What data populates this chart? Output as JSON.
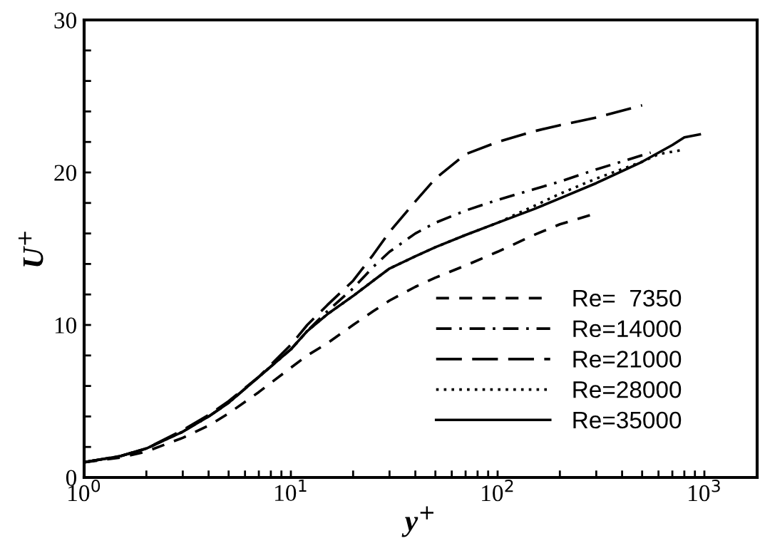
{
  "chart_data": {
    "type": "line",
    "xlabel": "y$^{+}$",
    "ylabel": "U$^{+}$",
    "log": "x",
    "xlim": [
      1,
      1800
    ],
    "ylim": [
      0,
      30
    ],
    "xticks": [
      {
        "value": 1,
        "label": "10$^{0}$"
      },
      {
        "value": 2,
        "label": null
      },
      {
        "value": 3,
        "label": null
      },
      {
        "value": 4,
        "label": null
      },
      {
        "value": 5,
        "label": null
      },
      {
        "value": 6,
        "label": null
      },
      {
        "value": 7,
        "label": null
      },
      {
        "value": 8,
        "label": null
      },
      {
        "value": 9,
        "label": null
      },
      {
        "value": 10,
        "label": "10$^{1}$"
      },
      {
        "value": 20,
        "label": null
      },
      {
        "value": 30,
        "label": null
      },
      {
        "value": 40,
        "label": null
      },
      {
        "value": 50,
        "label": null
      },
      {
        "value": 60,
        "label": null
      },
      {
        "value": 70,
        "label": null
      },
      {
        "value": 80,
        "label": null
      },
      {
        "value": 90,
        "label": null
      },
      {
        "value": 100,
        "label": "10$^{2}$"
      },
      {
        "value": 200,
        "label": null
      },
      {
        "value": 300,
        "label": null
      },
      {
        "value": 400,
        "label": null
      },
      {
        "value": 500,
        "label": null
      },
      {
        "value": 600,
        "label": null
      },
      {
        "value": 700,
        "label": null
      },
      {
        "value": 800,
        "label": null
      },
      {
        "value": 900,
        "label": null
      },
      {
        "value": 1000,
        "label": "10$^{3}$"
      }
    ],
    "yticks": [
      0,
      {
        "value": 2,
        "label": null
      },
      {
        "value": 4,
        "label": null
      },
      {
        "value": 6,
        "label": null
      },
      {
        "value": 8,
        "label": null
      },
      10,
      {
        "value": 12,
        "label": null
      },
      {
        "value": 14,
        "label": null
      },
      {
        "value": 16,
        "label": null
      },
      {
        "value": 18,
        "label": null
      },
      20,
      {
        "value": 22,
        "label": null
      },
      {
        "value": 24,
        "label": null
      },
      {
        "value": 26,
        "label": null
      },
      {
        "value": 28,
        "label": null
      },
      30
    ],
    "grid": false,
    "legend": "bottom right",
    "marker": "none",
    "series": [
      {
        "name": "Re=  7350",
        "color": "#000000",
        "line_style": "dashed",
        "x": [
          1,
          1.5,
          2,
          3,
          4,
          5,
          7,
          10,
          12,
          15,
          20,
          25,
          30,
          40,
          50,
          70,
          100,
          150,
          200,
          280
        ],
        "values": [
          1.0,
          1.3,
          1.7,
          2.6,
          3.4,
          4.2,
          5.6,
          7.2,
          8.0,
          8.8,
          10.0,
          10.9,
          11.6,
          12.5,
          13.1,
          13.9,
          14.8,
          15.9,
          16.6,
          17.2
        ]
      },
      {
        "name": "Re=14000",
        "color": "#000000",
        "line_style": "dashdot",
        "x": [
          1,
          1.5,
          2,
          3,
          4,
          5,
          7,
          10,
          12,
          15,
          20,
          25,
          30,
          40,
          50,
          70,
          100,
          150,
          200,
          300,
          550
        ],
        "values": [
          1.0,
          1.4,
          1.9,
          3.0,
          4.0,
          4.9,
          6.6,
          8.4,
          9.6,
          10.9,
          12.4,
          13.8,
          14.8,
          16.0,
          16.7,
          17.5,
          18.2,
          18.9,
          19.4,
          20.2,
          21.3
        ]
      },
      {
        "name": "Re=21000",
        "color": "#000000",
        "line_style": "longdash",
        "x": [
          1,
          1.5,
          2,
          3,
          4,
          5,
          7,
          10,
          12,
          15,
          20,
          25,
          30,
          40,
          50,
          70,
          100,
          150,
          200,
          300,
          500
        ],
        "values": [
          1.0,
          1.4,
          1.9,
          3.1,
          4.1,
          5.0,
          6.6,
          8.7,
          10.0,
          11.3,
          12.9,
          14.6,
          16.1,
          18.1,
          19.6,
          21.2,
          22.0,
          22.7,
          23.1,
          23.6,
          24.4
        ]
      },
      {
        "name": "Re=28000",
        "color": "#000000",
        "line_style": "dotted",
        "x": [
          1,
          1.5,
          2,
          3,
          4,
          5,
          7,
          10,
          12,
          15,
          20,
          25,
          30,
          40,
          50,
          70,
          100,
          150,
          200,
          300,
          500,
          600,
          800
        ],
        "values": [
          1.0,
          1.4,
          1.9,
          3.0,
          4.0,
          4.9,
          6.6,
          8.4,
          9.6,
          10.7,
          11.9,
          12.9,
          13.7,
          14.5,
          15.1,
          15.9,
          16.7,
          17.8,
          18.6,
          19.6,
          20.7,
          21.2,
          21.5
        ]
      },
      {
        "name": "Re=35000",
        "color": "#000000",
        "line_style": "solid",
        "x": [
          1,
          1.5,
          2,
          3,
          4,
          5,
          7,
          10,
          12,
          15,
          20,
          25,
          30,
          40,
          50,
          70,
          100,
          150,
          200,
          300,
          500,
          700,
          800,
          950
        ],
        "values": [
          1.0,
          1.4,
          1.9,
          3.0,
          4.0,
          4.9,
          6.6,
          8.4,
          9.6,
          10.7,
          11.9,
          12.9,
          13.7,
          14.5,
          15.1,
          15.9,
          16.7,
          17.6,
          18.3,
          19.3,
          20.7,
          21.8,
          22.3,
          22.5
        ]
      }
    ]
  }
}
